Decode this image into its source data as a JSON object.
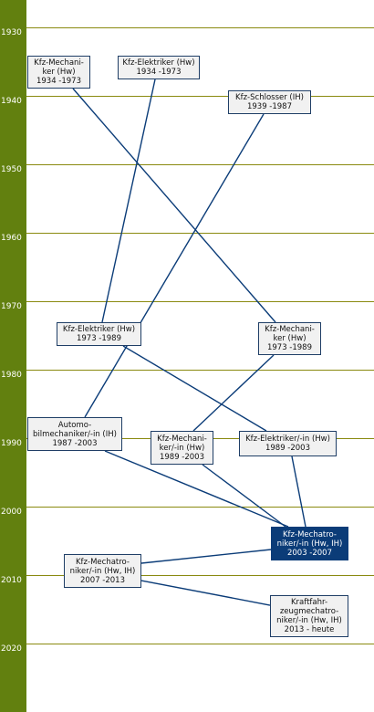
{
  "colors": {
    "axis": "#62800f",
    "grid": "#8a8a10",
    "link": "#0b3c78",
    "node_fill": "#f1f1f1",
    "node_current": "#0b3c78"
  },
  "years": [
    "1930",
    "1940",
    "1950",
    "1960",
    "1970",
    "1980",
    "1990",
    "2000",
    "2010",
    "2020"
  ],
  "nodes": [
    {
      "id": "mech1934",
      "label": "Kfz-Mechani-\nker (Hw)\n1934 -1973"
    },
    {
      "id": "elek1934",
      "label": "Kfz-Elektriker (Hw)\n1934 -1973"
    },
    {
      "id": "schl1939",
      "label": "Kfz-Schlosser (IH)\n1939 -1987"
    },
    {
      "id": "elek1973",
      "label": "Kfz-Elektriker (Hw)\n1973 -1989"
    },
    {
      "id": "mech1973",
      "label": "Kfz-Mechani-\nker (Hw)\n1973 -1989"
    },
    {
      "id": "auto1987",
      "label": "Automo-\nbilmechaniker/-in (IH)\n1987 -2003"
    },
    {
      "id": "mech1989",
      "label": "Kfz-Mechani-\nker/-in (Hw)\n1989 -2003"
    },
    {
      "id": "elek1989",
      "label": "Kfz-Elektriker/-in (Hw)\n1989 -2003"
    },
    {
      "id": "mtr2003",
      "label": "Kfz-Mechatro-\nniker/-in (Hw, IH)\n2003 -2007",
      "current": true
    },
    {
      "id": "mtr2007",
      "label": "Kfz-Mechatro-\nniker/-in (Hw, IH)\n2007 -2013"
    },
    {
      "id": "kraft2013",
      "label": "Kraftfahr-\nzeugmechatro-\nniker/-in (Hw, IH)\n2013 - heute"
    }
  ],
  "links": [
    [
      "mech1934",
      "mech1973"
    ],
    [
      "elek1934",
      "elek1973"
    ],
    [
      "schl1939",
      "auto1987"
    ],
    [
      "elek1973",
      "elek1989"
    ],
    [
      "mech1973",
      "mech1989"
    ],
    [
      "auto1987",
      "mtr2003"
    ],
    [
      "mech1989",
      "mtr2003"
    ],
    [
      "elek1989",
      "mtr2003"
    ],
    [
      "mtr2003",
      "mtr2007"
    ],
    [
      "mtr2007",
      "kraft2013"
    ]
  ]
}
